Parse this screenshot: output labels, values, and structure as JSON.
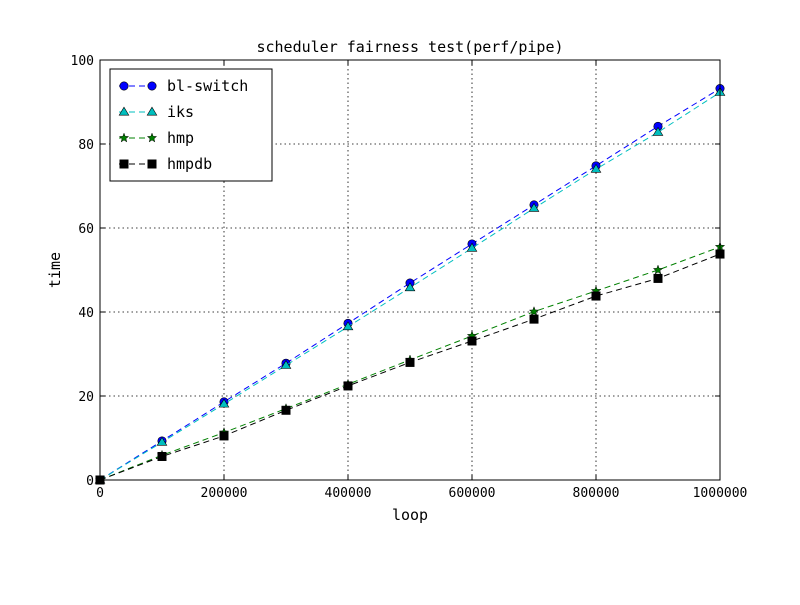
{
  "chart_data": {
    "type": "line",
    "title": "scheduler fairness test(perf/pipe)",
    "xlabel": "loop",
    "ylabel": "time",
    "xlim": [
      0,
      1000000
    ],
    "ylim": [
      0,
      100
    ],
    "x_ticks": [
      "0",
      "200000",
      "400000",
      "600000",
      "800000",
      "1000000"
    ],
    "y_ticks": [
      "0",
      "20",
      "40",
      "60",
      "80",
      "100"
    ],
    "grid": true,
    "legend_position": "top-left",
    "x": [
      0,
      100000,
      200000,
      300000,
      400000,
      500000,
      600000,
      700000,
      800000,
      900000,
      1000000
    ],
    "series": [
      {
        "name": "bl-switch",
        "marker": "circle",
        "line_color": "#0000ff",
        "marker_color": "#0000ff",
        "values": [
          0,
          9.3,
          18.6,
          27.8,
          37.3,
          46.9,
          56.2,
          65.5,
          74.8,
          84.2,
          93.2
        ]
      },
      {
        "name": "iks",
        "marker": "triangle-up",
        "line_color": "#00bfbf",
        "marker_color": "#00bfbf",
        "values": [
          0,
          9.0,
          18.1,
          27.3,
          36.5,
          45.8,
          55.2,
          64.7,
          74.0,
          82.8,
          92.3
        ]
      },
      {
        "name": "hmp",
        "marker": "star",
        "line_color": "#008000",
        "marker_color": "#008000",
        "values": [
          0,
          5.9,
          11.3,
          17.0,
          22.8,
          28.6,
          34.3,
          40.1,
          45.0,
          50.0,
          55.5
        ]
      },
      {
        "name": "hmpdb",
        "marker": "square",
        "line_color": "#000000",
        "marker_color": "#000000",
        "values": [
          0,
          5.6,
          10.5,
          16.6,
          22.4,
          28.0,
          33.1,
          38.3,
          43.8,
          48.0,
          53.8
        ]
      }
    ]
  }
}
